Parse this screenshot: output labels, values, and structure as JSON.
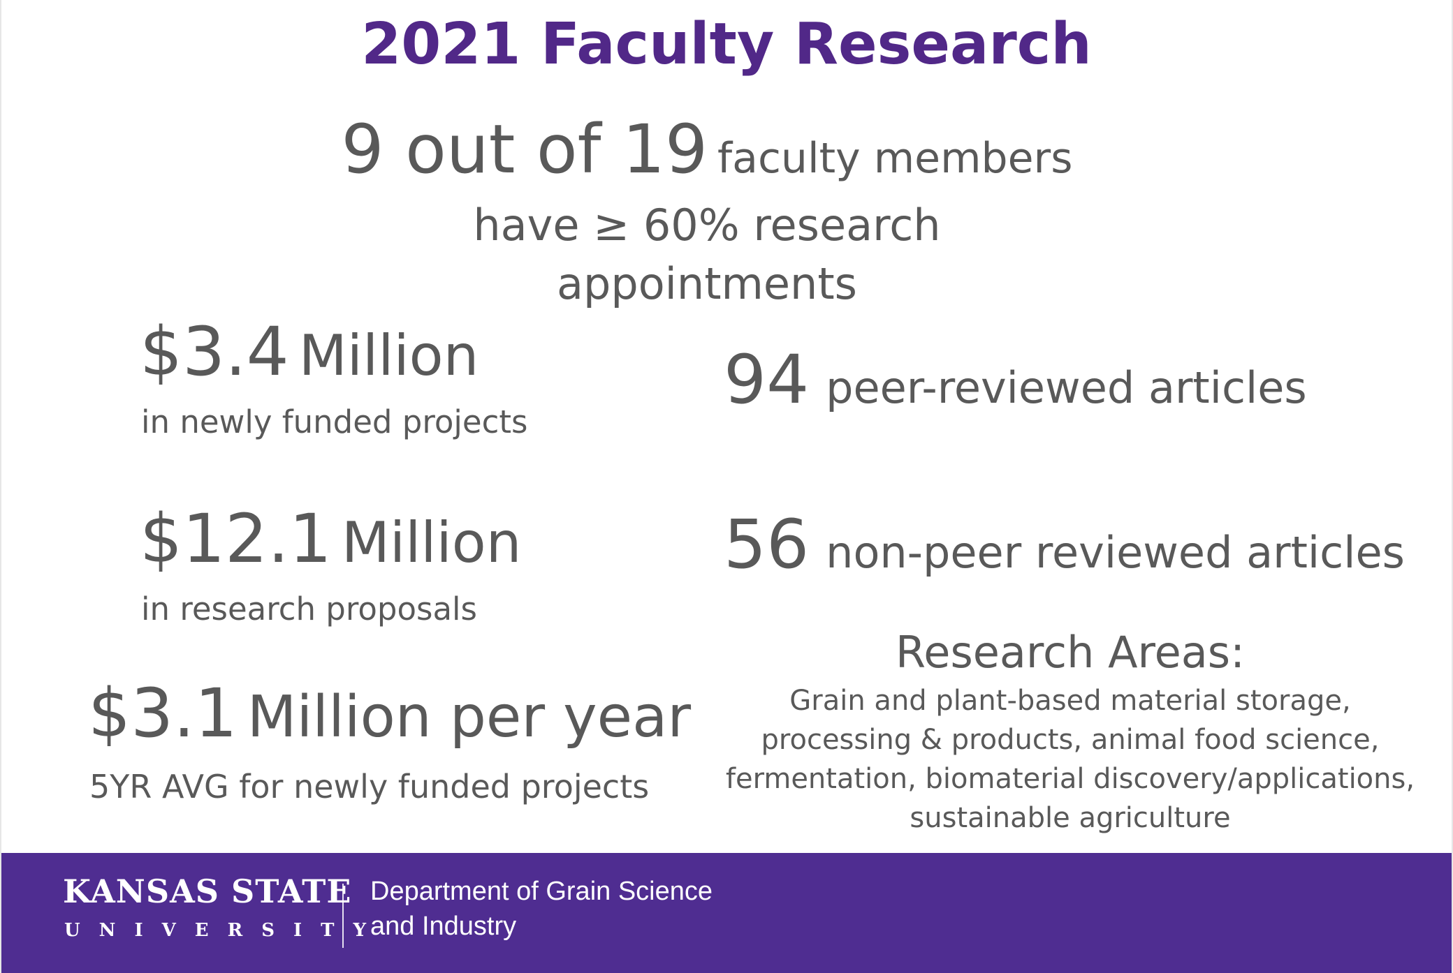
{
  "title": "2021 Faculty Research",
  "faculty_ratio": {
    "count_text": "9 out of 19",
    "label": "faculty members",
    "line2": "have ≥ 60% research",
    "line3": "appointments"
  },
  "stats_left": [
    {
      "value": "$3.4",
      "unit": "Million",
      "description": "in newly funded projects"
    },
    {
      "value": "$12.1",
      "unit": "Million",
      "description": "in research proposals"
    },
    {
      "value": "$3.1",
      "unit": "Million per year",
      "description": "5YR AVG for newly funded projects"
    }
  ],
  "stats_right": [
    {
      "value": "94",
      "label": "peer-reviewed articles"
    },
    {
      "value": "56",
      "label": "non-peer reviewed articles"
    }
  ],
  "research_areas": {
    "heading": "Research Areas:",
    "lines": [
      "Grain and plant-based material storage,",
      "processing & products, animal food science,",
      "fermentation, biomaterial discovery/applications,",
      "sustainable agriculture"
    ]
  },
  "footer": {
    "university_name": "KANSAS STATE",
    "university_sub": "UNIVERSITY",
    "department_line1": "Department of Grain Science",
    "department_line2": "and Industry"
  },
  "colors": {
    "brand_purple": "#512888",
    "footer_purple": "#4f2d91",
    "text_gray": "#595959"
  }
}
